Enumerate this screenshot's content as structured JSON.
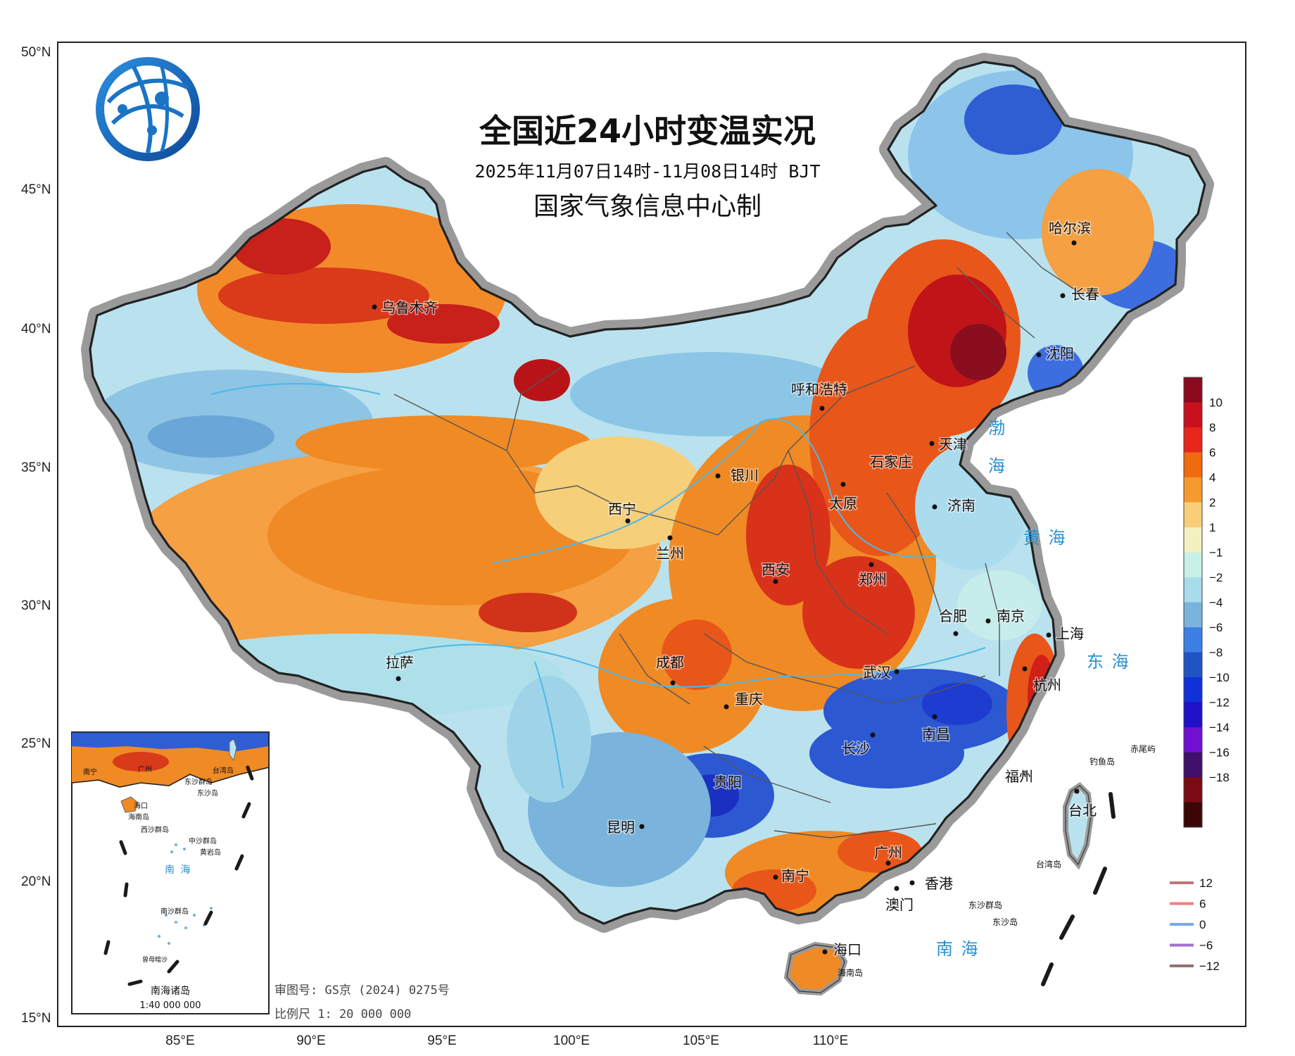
{
  "title": "全国近24小时变温实况",
  "subtitle": "2025年11月07日14时-11月08日14时 BJT",
  "maker": "国家气象信息中心制",
  "lat_labels": [
    "50°N",
    "45°N",
    "40°N",
    "35°N",
    "30°N",
    "25°N",
    "20°N",
    "15°N"
  ],
  "lon_labels": [
    "85°E",
    "90°E",
    "95°E",
    "100°E",
    "105°E",
    "110°E"
  ],
  "cities": [
    {
      "name": "哈尔滨"
    },
    {
      "name": "长春"
    },
    {
      "name": "沈阳"
    },
    {
      "name": "乌鲁木齐"
    },
    {
      "name": "呼和浩特"
    },
    {
      "name": "天津"
    },
    {
      "name": "石家庄"
    },
    {
      "name": "银川"
    },
    {
      "name": "太原"
    },
    {
      "name": "济南"
    },
    {
      "name": "西宁"
    },
    {
      "name": "兰州"
    },
    {
      "name": "西安"
    },
    {
      "name": "郑州"
    },
    {
      "name": "合肥"
    },
    {
      "name": "南京"
    },
    {
      "name": "上海"
    },
    {
      "name": "拉萨"
    },
    {
      "name": "成都"
    },
    {
      "name": "武汉"
    },
    {
      "name": "杭州"
    },
    {
      "name": "重庆"
    },
    {
      "name": "长沙"
    },
    {
      "name": "南昌"
    },
    {
      "name": "福州"
    },
    {
      "name": "贵阳"
    },
    {
      "name": "台北"
    },
    {
      "name": "昆明"
    },
    {
      "name": "广州"
    },
    {
      "name": "南宁"
    },
    {
      "name": "香港"
    },
    {
      "name": "澳门"
    },
    {
      "name": "海口"
    }
  ],
  "places": {
    "taiwan_island": "台湾岛",
    "hainan_island": "海南岛",
    "dongsha": "东沙群岛",
    "dongsha_island": "东沙岛",
    "diaoyu": "钓鱼岛",
    "chiwei": "赤尾屿"
  },
  "seas": {
    "bohai_1": "渤",
    "bohai_2": "海",
    "huanghai": "黄 海",
    "donghai": "东 海",
    "nanhai": "南 海"
  },
  "legend": {
    "colorbar_ticks": [
      "10",
      "8",
      "6",
      "4",
      "2",
      "1",
      "−1",
      "−2",
      "−4",
      "−6",
      "−8",
      "−10",
      "−12",
      "−14",
      "−16",
      "−18"
    ],
    "colorbar_colors": [
      "#8b0a1e",
      "#c8101e",
      "#e8261c",
      "#f06a10",
      "#f59a2e",
      "#f8cf78",
      "#f4f1c0",
      "#c9f0e6",
      "#a8dced",
      "#7ab3dc",
      "#3c80e6",
      "#2054c4",
      "#1030d8",
      "#2010c8",
      "#7010d0",
      "#40106a",
      "#7a0a14",
      "#3a0606"
    ],
    "isoline_values": [
      "12",
      "6",
      "0",
      "−6",
      "−12"
    ],
    "isoline_colors": [
      "#c07878",
      "#f08080",
      "#78a8e8",
      "#a070d0",
      "#907070"
    ]
  },
  "inset": {
    "title": "南海诸岛",
    "scale": "1:40 000 000",
    "labels": {
      "nanning": "南宁",
      "guangzhou": "广州",
      "taiwan": "台湾岛",
      "dongsha": "东沙群岛",
      "dongsha_island": "东沙岛",
      "haikou": "海口",
      "hainan": "海南岛",
      "xisha": "西沙群岛",
      "zhongsha": "中沙群岛",
      "huangyan": "黄岩岛",
      "sea": "南 海",
      "nansha": "南沙群岛",
      "zengmu": "曾母暗沙"
    }
  },
  "review_number": "审图号: GS京 (2024) 0275号",
  "scale_bar": "比例尺  1: 20 000 000",
  "colors": {
    "warm_strong": "#c8101e",
    "warm": "#f07f1e",
    "cold": "#2e5ed2",
    "cool": "#9ad4ea",
    "coast_halo": "#9a9a9a",
    "border": "#222222",
    "river": "#4fb7e8",
    "logo": "#1a74c4"
  }
}
